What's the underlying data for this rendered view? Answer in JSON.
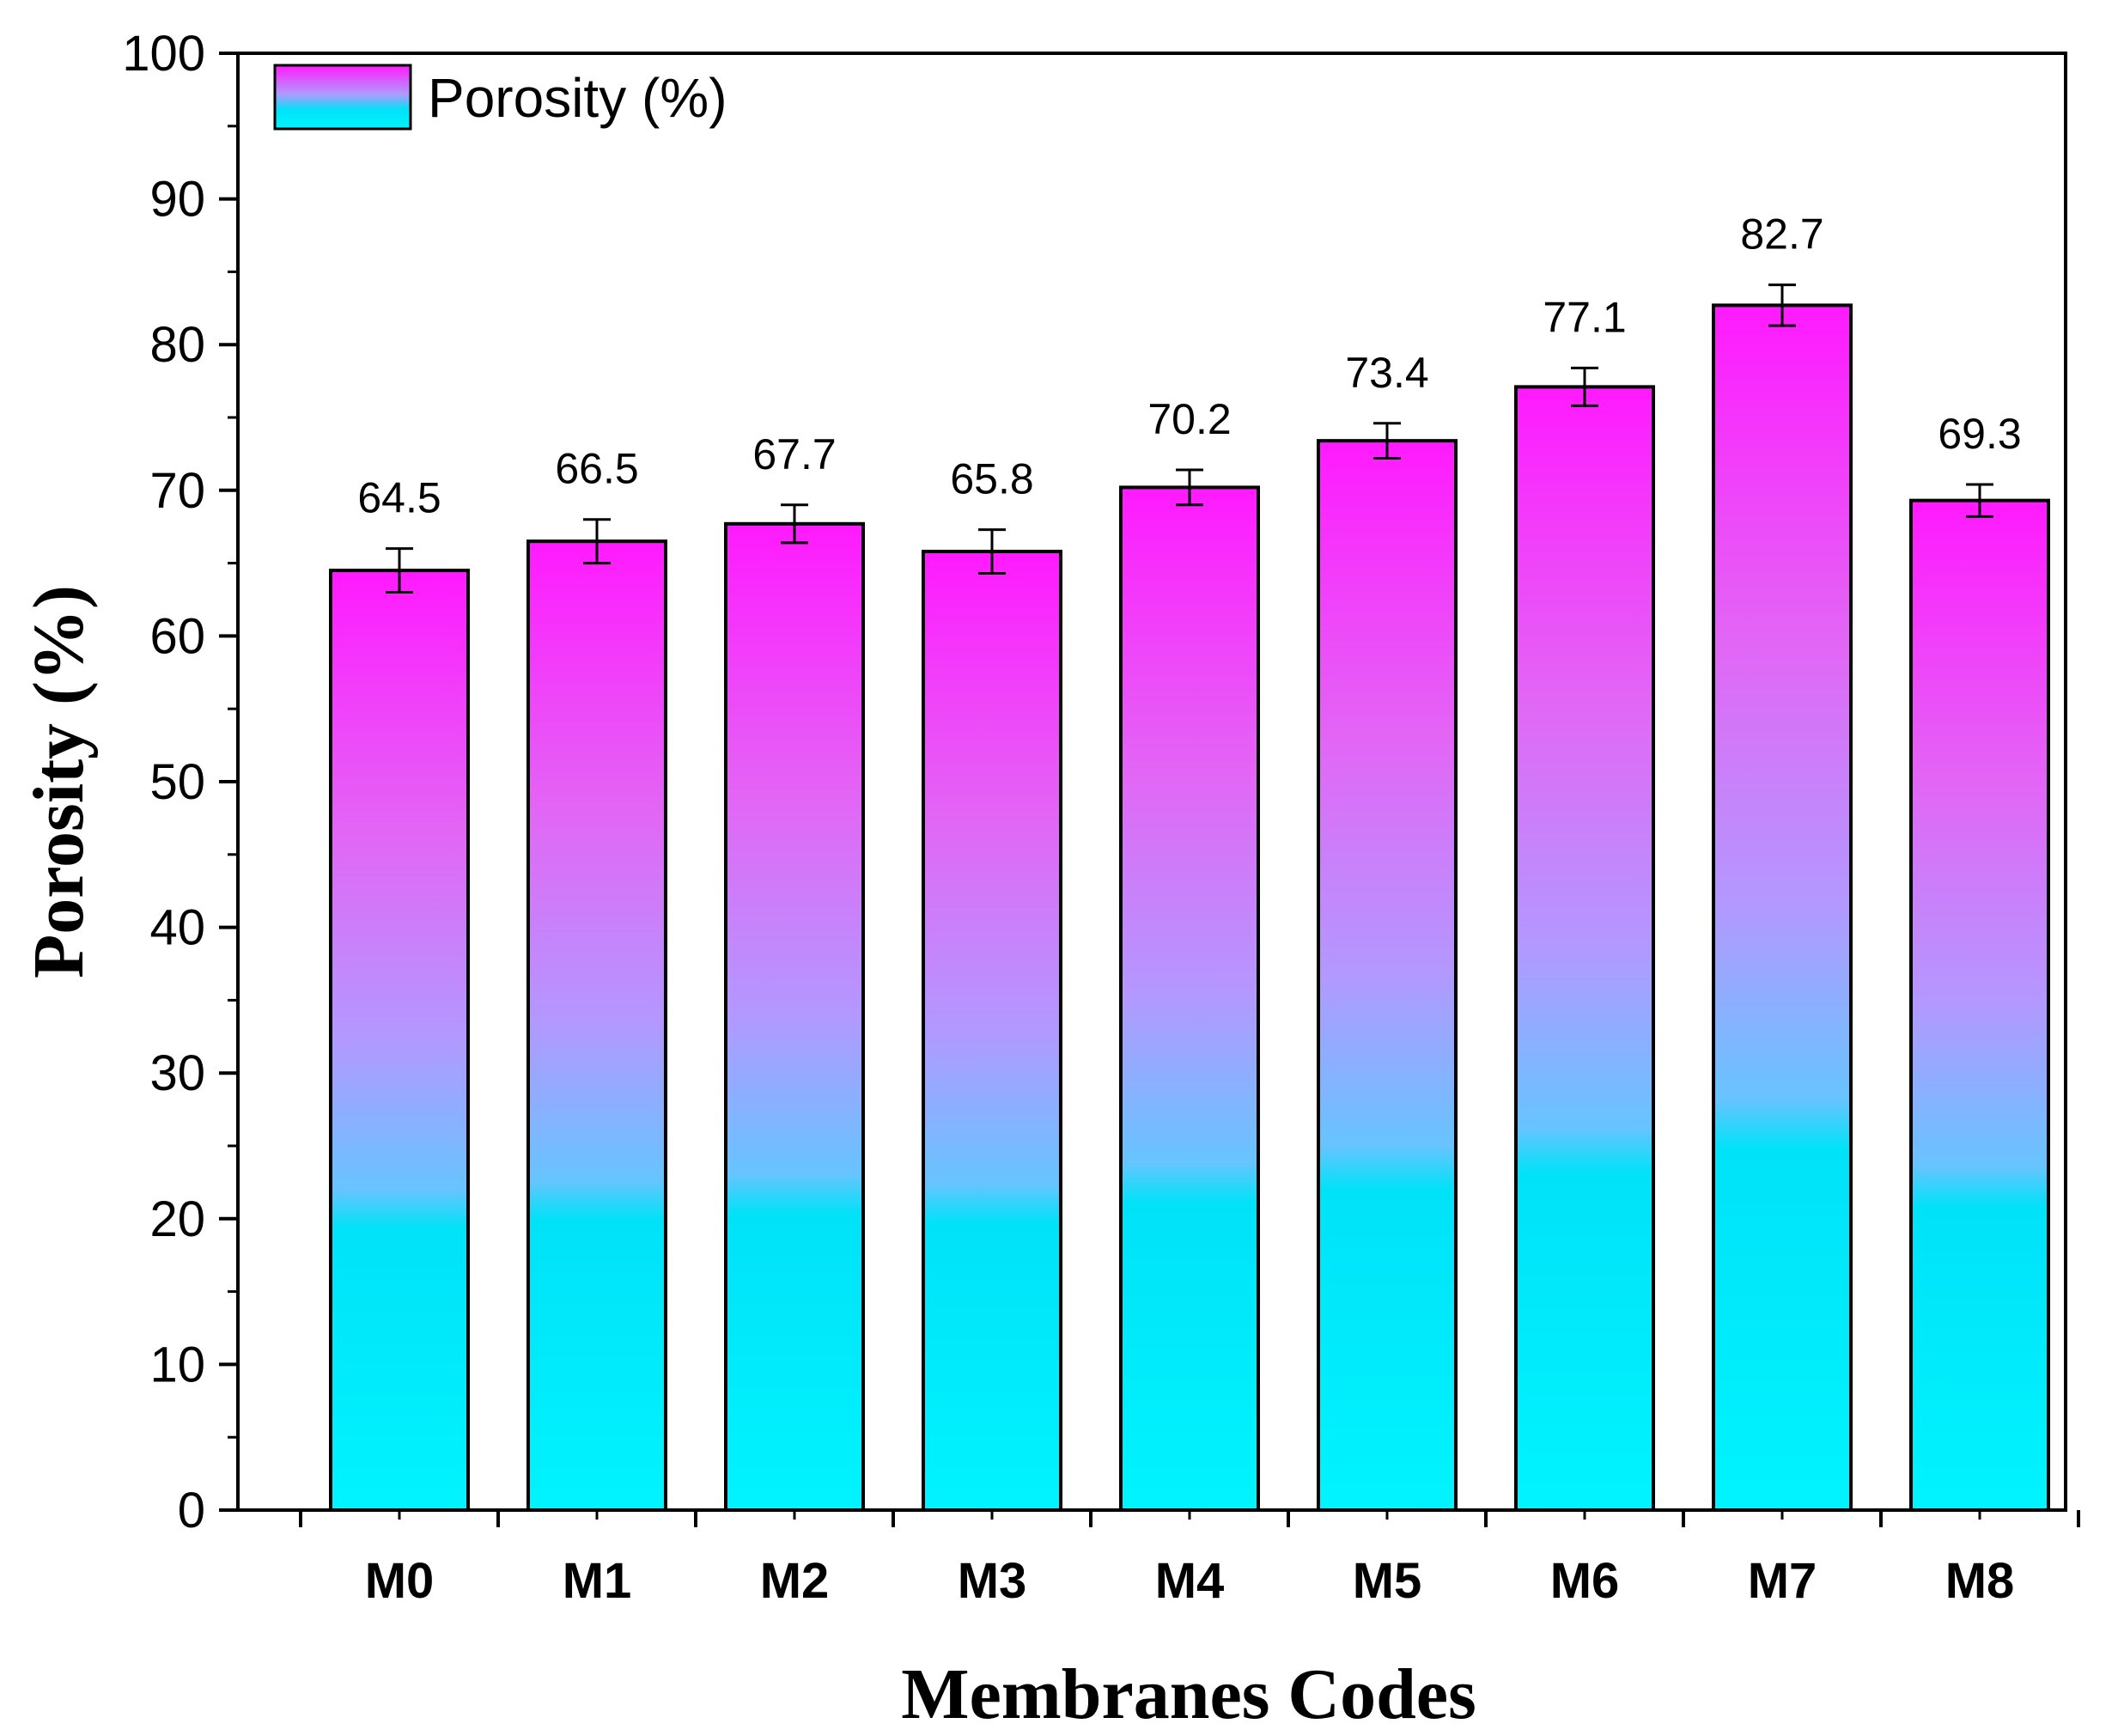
{
  "chart_data": {
    "type": "bar",
    "title": "",
    "xlabel": "Membranes Codes",
    "ylabel": "Porosity (%)",
    "ylim": [
      0,
      100
    ],
    "yticks": [
      0,
      10,
      20,
      30,
      40,
      50,
      60,
      70,
      80,
      90,
      100
    ],
    "categories": [
      "M0",
      "M1",
      "M2",
      "M3",
      "M4",
      "M5",
      "M6",
      "M7",
      "M8"
    ],
    "series": [
      {
        "name": "Porosity (%)",
        "values": [
          64.5,
          66.5,
          67.7,
          65.8,
          70.2,
          73.4,
          77.1,
          82.7,
          69.3
        ],
        "errors": [
          1.5,
          1.5,
          1.3,
          1.5,
          1.2,
          1.2,
          1.3,
          1.4,
          1.1
        ],
        "data_labels": [
          "64.5",
          "66.5",
          "67.7",
          "65.8",
          "70.2",
          "73.4",
          "77.1",
          "82.7",
          "69.3"
        ]
      }
    ],
    "legend": {
      "position": "top-left",
      "label": "Porosity (%)"
    },
    "colors": {
      "top": "#ff1aff",
      "middle": "#a9a9ff",
      "bottom": "#00f2ff",
      "stroke": "#000000"
    },
    "grid": false
  }
}
